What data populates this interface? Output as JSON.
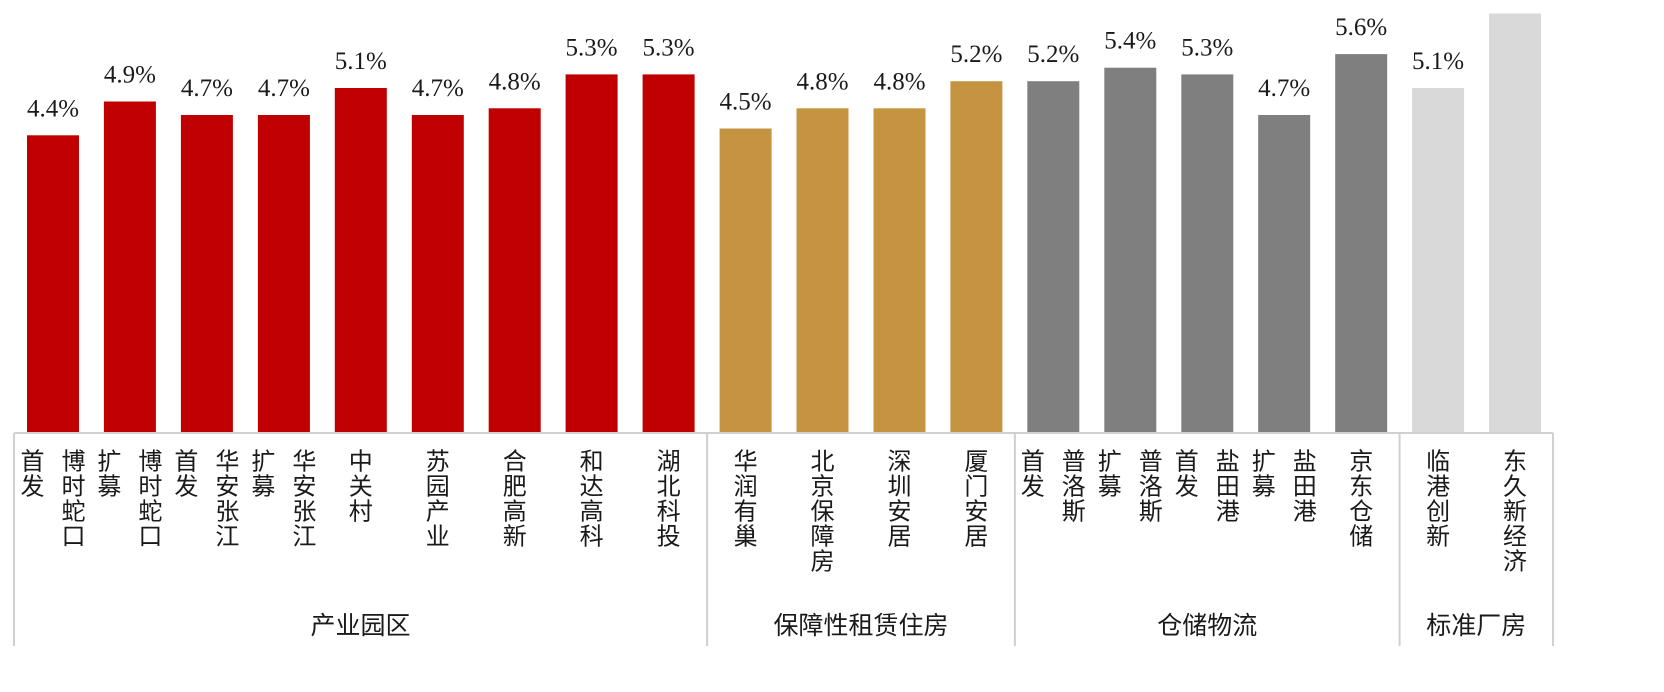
{
  "chart_data": {
    "type": "bar",
    "title": "",
    "xlabel": "",
    "ylabel": "",
    "ylim": [
      0,
      6.4
    ],
    "grid": false,
    "legend": "none",
    "value_suffix": "%",
    "colors": {
      "产业园区": "#c00000",
      "保障性租赁住房": "#c49441",
      "仓储物流": "#7f7f7f",
      "标准厂房": "#d9d9d9"
    },
    "axis_color": "#d0d0d0",
    "bars": [
      {
        "group": "产业园区",
        "label": [
          "首发",
          "博时蛇口"
        ],
        "value": 4.4
      },
      {
        "group": "产业园区",
        "label": [
          "扩募",
          "博时蛇口"
        ],
        "value": 4.9
      },
      {
        "group": "产业园区",
        "label": [
          "首发",
          "华安张江"
        ],
        "value": 4.7
      },
      {
        "group": "产业园区",
        "label": [
          "扩募",
          "华安张江"
        ],
        "value": 4.7
      },
      {
        "group": "产业园区",
        "label": [
          "中关村"
        ],
        "value": 5.1
      },
      {
        "group": "产业园区",
        "label": [
          "苏园产业"
        ],
        "value": 4.7
      },
      {
        "group": "产业园区",
        "label": [
          "合肥高新"
        ],
        "value": 4.8
      },
      {
        "group": "产业园区",
        "label": [
          "和达高科"
        ],
        "value": 5.3
      },
      {
        "group": "产业园区",
        "label": [
          "湖北科投"
        ],
        "value": 5.3
      },
      {
        "group": "保障性租赁住房",
        "label": [
          "华润有巢"
        ],
        "value": 4.5
      },
      {
        "group": "保障性租赁住房",
        "label": [
          "北京保障房"
        ],
        "value": 4.8
      },
      {
        "group": "保障性租赁住房",
        "label": [
          "深圳安居"
        ],
        "value": 4.8
      },
      {
        "group": "保障性租赁住房",
        "label": [
          "厦门安居"
        ],
        "value": 5.2
      },
      {
        "group": "仓储物流",
        "label": [
          "首发",
          "普洛斯"
        ],
        "value": 5.2
      },
      {
        "group": "仓储物流",
        "label": [
          "扩募",
          "普洛斯"
        ],
        "value": 5.4
      },
      {
        "group": "仓储物流",
        "label": [
          "首发",
          "盐田港"
        ],
        "value": 5.3
      },
      {
        "group": "仓储物流",
        "label": [
          "扩募",
          "盐田港"
        ],
        "value": 4.7
      },
      {
        "group": "仓储物流",
        "label": [
          "京东仓储"
        ],
        "value": 5.6
      },
      {
        "group": "标准厂房",
        "label": [
          "临港创新"
        ],
        "value": 5.1
      },
      {
        "group": "标准厂房",
        "label": [
          "东久新经济"
        ],
        "value": 6.2
      }
    ],
    "groups": [
      "产业园区",
      "保障性租赁住房",
      "仓储物流",
      "标准厂房"
    ]
  }
}
